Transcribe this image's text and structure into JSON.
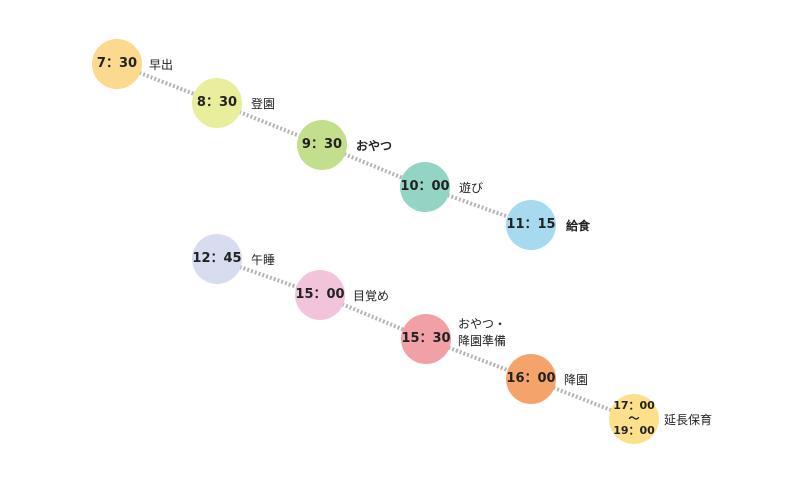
{
  "schedule": [
    {
      "time": "7：30",
      "activity": "早出",
      "color": "#fbd98f"
    },
    {
      "time": "8：30",
      "activity": "登園",
      "color": "#e8ee9b"
    },
    {
      "time": "9：30",
      "activity": "おやつ",
      "color": "#c3de8c"
    },
    {
      "time": "10：00",
      "activity": "遊び",
      "color": "#93d4c4"
    },
    {
      "time": "11：15",
      "activity": "給食",
      "color": "#a7daee"
    },
    {
      "time": "12：45",
      "activity": "午睡",
      "color": "#d8dcef"
    },
    {
      "time": "15：00",
      "activity": "目覚め",
      "color": "#f2c4dc"
    },
    {
      "time": "15：30",
      "activity": "おやつ・\n降園準備",
      "color": "#f1a1a6"
    },
    {
      "time": "16：00",
      "activity": "降園",
      "color": "#f4a46b"
    },
    {
      "time": "17：00～\n19：00",
      "activity": "延長保育",
      "color": "#fde08c"
    }
  ],
  "connector_color": "#b5b5b5"
}
